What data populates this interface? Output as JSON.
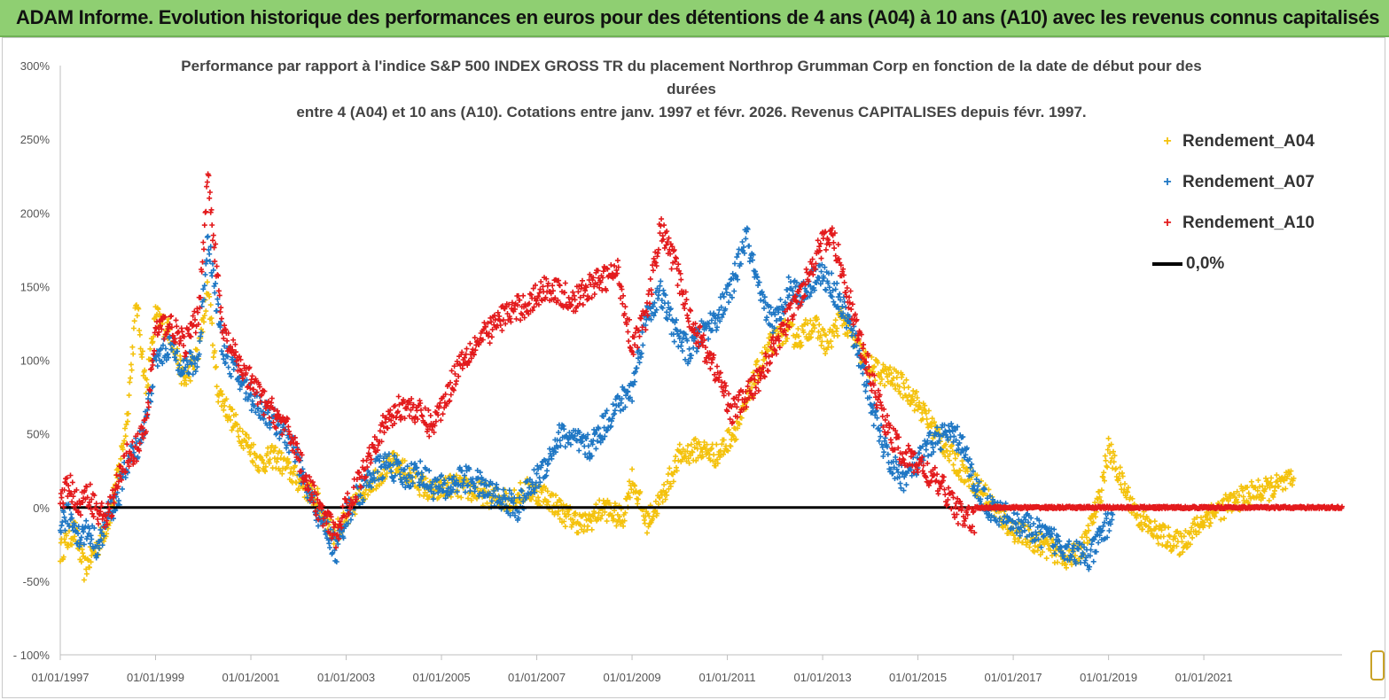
{
  "banner": {
    "title": "ADAM Informe. Evolution historique des performances en euros pour des détentions de 4 ans (A04) à 10 ans (A10) avec les revenus connus capitalisés"
  },
  "chart_data": {
    "type": "scatter",
    "title_lines": [
      "Performance par rapport à l'indice S&P 500 INDEX GROSS TR  du placement Northrop Grumman Corp en fonction de la date de début pour des",
      "durées",
      "entre 4 (A04) et 10 ans (A10). Cotations entre janv. 1997 et févr. 2026. Revenus CAPITALISES depuis févr. 1997."
    ],
    "xlabel": "",
    "ylabel": "",
    "x_range": [
      1997.0,
      2023.9
    ],
    "ylim": [
      -100,
      300
    ],
    "y_ticks": [
      "300%",
      "250%",
      "200%",
      "150%",
      "100%",
      "50%",
      "0%",
      "-50%",
      "- 100%"
    ],
    "y_tick_values": [
      300,
      250,
      200,
      150,
      100,
      50,
      0,
      -50,
      -100
    ],
    "x_ticks": [
      "01/01/1997",
      "01/01/1999",
      "01/01/2001",
      "01/01/2003",
      "01/01/2005",
      "01/01/2007",
      "01/01/2009",
      "01/01/2011",
      "01/01/2013",
      "01/01/2015",
      "01/01/2017",
      "01/01/2019",
      "01/01/2021"
    ],
    "x_tick_values": [
      1997,
      1999,
      2001,
      2003,
      2005,
      2007,
      2009,
      2011,
      2013,
      2015,
      2017,
      2019,
      2021
    ],
    "reference_line": {
      "name": "0,0%",
      "value": 0,
      "color": "#000000"
    },
    "series": [
      {
        "name": "Rendement_A04",
        "color": "#f4c20d",
        "x": [
          1997.0,
          1997.3,
          1997.5,
          1997.8,
          1998.0,
          1998.2,
          1998.4,
          1998.6,
          1998.8,
          1999.0,
          1999.3,
          1999.6,
          1999.9,
          2000.1,
          2000.3,
          2000.6,
          2000.9,
          2001.2,
          2001.5,
          2001.8,
          2002.1,
          2002.4,
          2002.7,
          2003.0,
          2003.3,
          2003.6,
          2004.0,
          2004.4,
          2004.8,
          2005.2,
          2005.6,
          2006.0,
          2006.4,
          2006.8,
          2007.2,
          2007.6,
          2008.0,
          2008.4,
          2008.8,
          2009.0,
          2009.3,
          2009.6,
          2010.0,
          2010.4,
          2010.8,
          2011.0,
          2011.3,
          2011.6,
          2011.9,
          2012.2,
          2012.5,
          2012.8,
          2013.1,
          2013.4,
          2013.7,
          2014.0,
          2014.3,
          2014.6,
          2014.9,
          2015.2,
          2015.5,
          2015.8,
          2016.1,
          2016.4,
          2016.7,
          2017.0,
          2017.3,
          2017.6,
          2017.9,
          2018.2,
          2018.5,
          2018.8,
          2019.0,
          2019.3,
          2019.6,
          2019.9,
          2020.2,
          2020.5,
          2020.8,
          2021.1,
          2021.4,
          2021.7,
          2022.0,
          2022.3,
          2022.6,
          2022.9
        ],
        "y": [
          -30,
          -15,
          -42,
          -25,
          -10,
          20,
          60,
          140,
          80,
          130,
          120,
          85,
          105,
          150,
          80,
          60,
          45,
          30,
          35,
          25,
          15,
          5,
          -18,
          -10,
          10,
          20,
          30,
          20,
          10,
          15,
          12,
          8,
          5,
          12,
          8,
          -5,
          -12,
          0,
          -8,
          20,
          -10,
          5,
          35,
          40,
          35,
          45,
          60,
          90,
          110,
          120,
          115,
          125,
          110,
          130,
          110,
          95,
          90,
          85,
          75,
          60,
          45,
          30,
          20,
          10,
          -5,
          -15,
          -20,
          -25,
          -30,
          -35,
          -25,
          5,
          40,
          15,
          -5,
          -15,
          -20,
          -25,
          -15,
          -5,
          0,
          5,
          10,
          12,
          15,
          18
        ],
        "spread": 8
      },
      {
        "name": "Rendement_A07",
        "color": "#1f77c4",
        "x": [
          1997.0,
          1997.2,
          1997.4,
          1997.6,
          1997.8,
          1998.0,
          1998.2,
          1998.4,
          1998.6,
          1998.8,
          1999.0,
          1999.3,
          1999.6,
          1999.9,
          2000.1,
          2000.4,
          2000.7,
          2001.0,
          2001.3,
          2001.6,
          2001.9,
          2002.2,
          2002.5,
          2002.8,
          2003.0,
          2003.3,
          2003.6,
          2003.9,
          2004.2,
          2004.5,
          2004.8,
          2005.1,
          2005.4,
          2005.7,
          2006.0,
          2006.3,
          2006.6,
          2006.9,
          2007.2,
          2007.5,
          2007.8,
          2008.1,
          2008.4,
          2008.7,
          2009.0,
          2009.3,
          2009.6,
          2009.9,
          2010.2,
          2010.5,
          2010.8,
          2011.1,
          2011.4,
          2011.7,
          2012.0,
          2012.3,
          2012.6,
          2012.9,
          2013.2,
          2013.5,
          2013.8,
          2014.1,
          2014.4,
          2014.7,
          2015.0,
          2015.3,
          2015.6,
          2015.9,
          2016.2,
          2016.5,
          2016.8,
          2017.1,
          2017.4,
          2017.7,
          2018.0,
          2018.3,
          2018.6,
          2018.9,
          2019.1
        ],
        "y": [
          -10,
          -5,
          -20,
          -15,
          -28,
          -5,
          5,
          30,
          40,
          60,
          100,
          110,
          95,
          100,
          185,
          110,
          90,
          75,
          65,
          55,
          40,
          10,
          -10,
          -30,
          -5,
          10,
          25,
          30,
          20,
          25,
          15,
          12,
          20,
          18,
          10,
          5,
          0,
          15,
          30,
          50,
          45,
          40,
          55,
          70,
          80,
          130,
          145,
          120,
          105,
          120,
          130,
          150,
          185,
          140,
          125,
          150,
          145,
          160,
          150,
          130,
          100,
          60,
          30,
          20,
          30,
          45,
          50,
          45,
          15,
          0,
          -5,
          -10,
          -15,
          -20,
          -25,
          -30,
          -35,
          -15,
          -5
        ],
        "spread": 9
      },
      {
        "name": "Rendement_A10",
        "color": "#e31a1c",
        "x": [
          1997.0,
          1997.2,
          1997.4,
          1997.6,
          1997.8,
          1998.0,
          1998.2,
          1998.4,
          1998.6,
          1998.8,
          1999.0,
          1999.3,
          1999.6,
          1999.9,
          2000.1,
          2000.4,
          2000.7,
          2001.0,
          2001.3,
          2001.6,
          2001.9,
          2002.2,
          2002.5,
          2002.8,
          2003.0,
          2003.3,
          2003.6,
          2003.9,
          2004.2,
          2004.5,
          2004.8,
          2005.1,
          2005.4,
          2005.7,
          2006.0,
          2006.3,
          2006.6,
          2006.9,
          2007.2,
          2007.5,
          2007.8,
          2008.1,
          2008.4,
          2008.7,
          2009.0,
          2009.3,
          2009.6,
          2009.9,
          2010.2,
          2010.5,
          2010.8,
          2011.1,
          2011.4,
          2011.7,
          2012.0,
          2012.3,
          2012.6,
          2012.9,
          2013.2,
          2013.5,
          2013.8,
          2014.1,
          2014.4,
          2014.7,
          2015.0,
          2015.3,
          2015.6,
          2015.9,
          2016.2
        ],
        "y": [
          5,
          15,
          0,
          10,
          -5,
          -5,
          15,
          35,
          40,
          55,
          120,
          125,
          110,
          130,
          225,
          120,
          100,
          85,
          70,
          60,
          45,
          15,
          -5,
          -20,
          0,
          20,
          45,
          60,
          70,
          65,
          55,
          75,
          100,
          110,
          120,
          130,
          135,
          140,
          150,
          145,
          140,
          150,
          155,
          160,
          110,
          130,
          190,
          165,
          130,
          110,
          90,
          65,
          75,
          90,
          110,
          130,
          150,
          175,
          185,
          150,
          110,
          80,
          50,
          35,
          30,
          20,
          10,
          -5,
          -10
        ],
        "spread": 9,
        "flat_tail": {
          "from": 2016.2,
          "to": 2023.9,
          "value": 0
        }
      }
    ],
    "legend": [
      "Rendement_A04",
      "Rendement_A07",
      "Rendement_A10",
      "0,0%"
    ]
  }
}
